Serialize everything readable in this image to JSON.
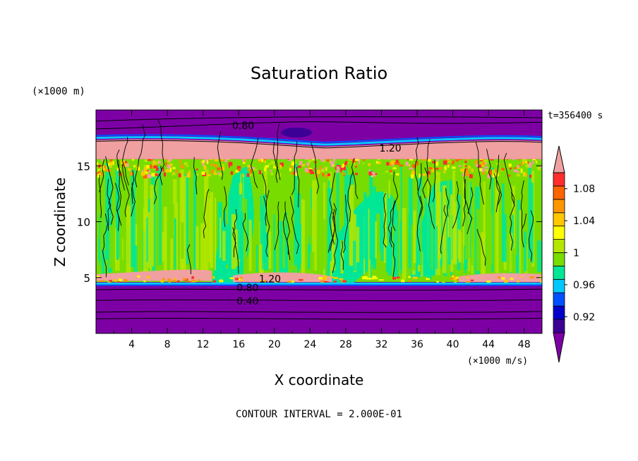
{
  "chart_data": {
    "type": "heatmap",
    "title": "Saturation Ratio",
    "xlabel": "X coordinate",
    "ylabel": "Z coordinate",
    "x_unit": "(×1000 m/s)",
    "y_unit": "(×1000 m)",
    "time_label": "t=356400 s",
    "footer": "CONTOUR INTERVAL = 2.000E-01",
    "xlim": [
      0,
      50
    ],
    "ylim": [
      0,
      20
    ],
    "x_ticks": [
      "4",
      "8",
      "12",
      "16",
      "20",
      "24",
      "28",
      "32",
      "36",
      "40",
      "44",
      "48"
    ],
    "x_tick_values": [
      4,
      8,
      12,
      16,
      20,
      24,
      28,
      32,
      36,
      40,
      44,
      48
    ],
    "y_ticks": [
      "5",
      "10",
      "15"
    ],
    "y_tick_values": [
      5,
      10,
      15
    ],
    "colorbar_labels": [
      "1.08",
      "1.04",
      "1",
      "0.96",
      "0.92"
    ],
    "colorbar_label_values": [
      1.08,
      1.04,
      1.0,
      0.96,
      0.92
    ],
    "colorbar_colors": [
      "#7d00a5",
      "#3c0096",
      "#0000c8",
      "#0050ff",
      "#00c8ff",
      "#00e696",
      "#78dc00",
      "#b4e600",
      "#ffff00",
      "#ffc800",
      "#ff9600",
      "#ff6400",
      "#ff2d2d",
      "#f0a0a0"
    ],
    "contour_labels": [
      {
        "text": "0.80",
        "x": 16.5,
        "z": 18.6
      },
      {
        "text": "1.20",
        "x": 33.0,
        "z": 16.6
      },
      {
        "text": "1.20",
        "x": 19.5,
        "z": 4.9
      },
      {
        "text": "0.80",
        "x": 17.0,
        "z": 4.1
      },
      {
        "text": "0.40",
        "x": 17.0,
        "z": 2.9
      }
    ]
  }
}
